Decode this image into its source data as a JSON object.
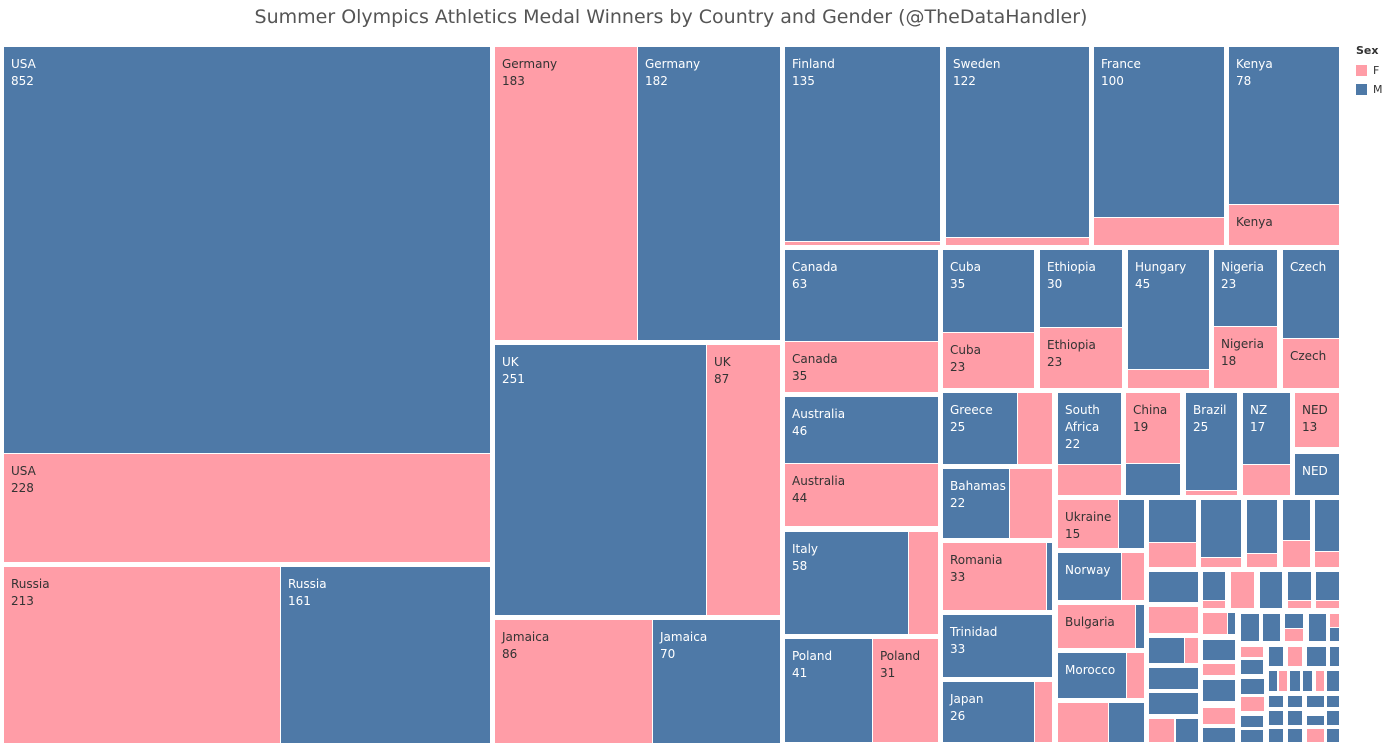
{
  "chart_data": {
    "type": "treemap",
    "title": "Summer Olympics Athletics Medal Winners by Country and Gender (@TheDataHandler)",
    "legend": {
      "title": "Sex",
      "position": "top-right",
      "entries": [
        {
          "label": "F",
          "color": "#FF9DA7"
        },
        {
          "label": "M",
          "color": "#4E79A7"
        }
      ]
    },
    "colors": {
      "F": "#FF9DA7",
      "M": "#4E79A7",
      "label_on_M": "#ffffff",
      "label_on_F": "#333333"
    },
    "tiles": [
      {
        "country": "USA",
        "sex": "M",
        "value": 852,
        "shown_label": "USA",
        "shown_value": "852"
      },
      {
        "country": "USA",
        "sex": "F",
        "value": 228,
        "shown_label": "USA",
        "shown_value": "228"
      },
      {
        "country": "Russia",
        "sex": "F",
        "value": 213,
        "shown_label": "Russia",
        "shown_value": "213"
      },
      {
        "country": "Russia",
        "sex": "M",
        "value": 161,
        "shown_label": "Russia",
        "shown_value": "161"
      },
      {
        "country": "Germany",
        "sex": "F",
        "value": 183,
        "shown_label": "Germany",
        "shown_value": "183"
      },
      {
        "country": "Germany",
        "sex": "M",
        "value": 182,
        "shown_label": "Germany",
        "shown_value": "182"
      },
      {
        "country": "UK",
        "sex": "M",
        "value": 251,
        "shown_label": "UK",
        "shown_value": "251"
      },
      {
        "country": "UK",
        "sex": "F",
        "value": 87,
        "shown_label": "UK",
        "shown_value": "87"
      },
      {
        "country": "Jamaica",
        "sex": "F",
        "value": 86,
        "shown_label": "Jamaica",
        "shown_value": "86"
      },
      {
        "country": "Jamaica",
        "sex": "M",
        "value": 70,
        "shown_label": "Jamaica",
        "shown_value": "70"
      },
      {
        "country": "Finland",
        "sex": "M",
        "value": 135,
        "shown_label": "Finland",
        "shown_value": "135"
      },
      {
        "country": "Finland",
        "sex": "F",
        "value": 2
      },
      {
        "country": "Sweden",
        "sex": "M",
        "value": 122,
        "shown_label": "Sweden",
        "shown_value": "122"
      },
      {
        "country": "Sweden",
        "sex": "F",
        "value": 4
      },
      {
        "country": "France",
        "sex": "M",
        "value": 100,
        "shown_label": "France",
        "shown_value": "100"
      },
      {
        "country": "France",
        "sex": "F",
        "value": 15
      },
      {
        "country": "Kenya",
        "sex": "M",
        "value": 78,
        "shown_label": "Kenya",
        "shown_value": "78"
      },
      {
        "country": "Kenya",
        "sex": "F",
        "value": 22,
        "shown_label": "Kenya"
      },
      {
        "country": "Canada",
        "sex": "M",
        "value": 63,
        "shown_label": "Canada",
        "shown_value": "63"
      },
      {
        "country": "Canada",
        "sex": "F",
        "value": 35,
        "shown_label": "Canada",
        "shown_value": "35"
      },
      {
        "country": "Cuba",
        "sex": "M",
        "value": 35,
        "shown_label": "Cuba",
        "shown_value": "35"
      },
      {
        "country": "Cuba",
        "sex": "F",
        "value": 23,
        "shown_label": "Cuba",
        "shown_value": "23"
      },
      {
        "country": "Ethiopia",
        "sex": "M",
        "value": 30,
        "shown_label": "Ethiopia",
        "shown_value": "30"
      },
      {
        "country": "Ethiopia",
        "sex": "F",
        "value": 23,
        "shown_label": "Ethiopia",
        "shown_value": "23"
      },
      {
        "country": "Hungary",
        "sex": "M",
        "value": 45,
        "shown_label": "Hungary",
        "shown_value": "45"
      },
      {
        "country": "Hungary",
        "sex": "F",
        "value": 8
      },
      {
        "country": "Nigeria",
        "sex": "M",
        "value": 23,
        "shown_label": "Nigeria",
        "shown_value": "23"
      },
      {
        "country": "Nigeria",
        "sex": "F",
        "value": 18,
        "shown_label": "Nigeria",
        "shown_value": "18"
      },
      {
        "country": "Czech",
        "sex": "M",
        "value": 21,
        "shown_label": "Czech"
      },
      {
        "country": "Czech",
        "sex": "F",
        "value": 12,
        "shown_label": "Czech"
      },
      {
        "country": "Australia",
        "sex": "M",
        "value": 46,
        "shown_label": "Australia",
        "shown_value": "46"
      },
      {
        "country": "Australia",
        "sex": "F",
        "value": 44,
        "shown_label": "Australia",
        "shown_value": "44"
      },
      {
        "country": "Italy",
        "sex": "M",
        "value": 58,
        "shown_label": "Italy",
        "shown_value": "58"
      },
      {
        "country": "Italy",
        "sex": "F",
        "value": 14
      },
      {
        "country": "Poland",
        "sex": "M",
        "value": 41,
        "shown_label": "Poland",
        "shown_value": "41"
      },
      {
        "country": "Poland",
        "sex": "F",
        "value": 31,
        "shown_label": "Poland",
        "shown_value": "31"
      },
      {
        "country": "Greece",
        "sex": "M",
        "value": 25,
        "shown_label": "Greece",
        "shown_value": "25"
      },
      {
        "country": "Greece",
        "sex": "F",
        "value": 11
      },
      {
        "country": "Bahamas",
        "sex": "M",
        "value": 22,
        "shown_label": "Bahamas",
        "shown_value": "22"
      },
      {
        "country": "Bahamas",
        "sex": "F",
        "value": 13
      },
      {
        "country": "Romania",
        "sex": "F",
        "value": 33,
        "shown_label": "Romania",
        "shown_value": "33"
      },
      {
        "country": "Romania",
        "sex": "M",
        "value": 2
      },
      {
        "country": "Trinidad",
        "sex": "M",
        "value": 33,
        "shown_label": "Trinidad",
        "shown_value": "33"
      },
      {
        "country": "Japan",
        "sex": "M",
        "value": 26,
        "shown_label": "Japan",
        "shown_value": "26"
      },
      {
        "country": "Japan",
        "sex": "F",
        "value": 4
      },
      {
        "country": "South Africa",
        "sex": "M",
        "value": 22,
        "shown_label": "South Africa",
        "shown_value": "22"
      },
      {
        "country": "South Africa",
        "sex": "F",
        "value": 8
      },
      {
        "country": "China",
        "sex": "F",
        "value": 19,
        "shown_label": "China",
        "shown_value": "19"
      },
      {
        "country": "China",
        "sex": "M",
        "value": 8
      },
      {
        "country": "Brazil",
        "sex": "M",
        "value": 25,
        "shown_label": "Brazil",
        "shown_value": "25"
      },
      {
        "country": "Brazil",
        "sex": "F",
        "value": 1
      },
      {
        "country": "NZ",
        "sex": "M",
        "value": 17,
        "shown_label": "NZ",
        "shown_value": "17"
      },
      {
        "country": "NZ",
        "sex": "F",
        "value": 8
      },
      {
        "country": "NED",
        "sex": "F",
        "value": 13,
        "shown_label": "NED",
        "shown_value": "13"
      },
      {
        "country": "NED",
        "sex": "M",
        "value": 10,
        "shown_label": "NED"
      },
      {
        "country": "Ukraine",
        "sex": "F",
        "value": 15,
        "shown_label": "Ukraine",
        "shown_value": "15"
      },
      {
        "country": "Ukraine",
        "sex": "M",
        "value": 7
      },
      {
        "country": "Norway",
        "sex": "M",
        "value": 16,
        "shown_label": "Norway"
      },
      {
        "country": "Norway",
        "sex": "F",
        "value": 5
      },
      {
        "country": "Bulgaria",
        "sex": "F",
        "value": 16,
        "shown_label": "Bulgaria"
      },
      {
        "country": "Bulgaria",
        "sex": "M",
        "value": 2
      },
      {
        "country": "Morocco",
        "sex": "M",
        "value": 14,
        "shown_label": "Morocco"
      },
      {
        "country": "Morocco",
        "sex": "F",
        "value": 4
      }
    ]
  }
}
